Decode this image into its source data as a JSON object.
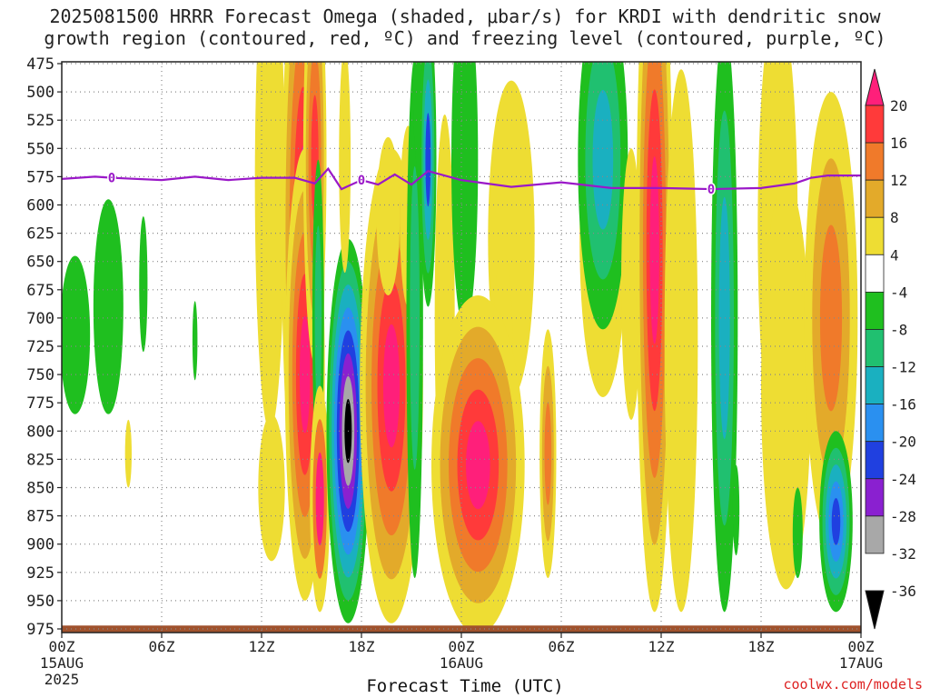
{
  "title_line1": "2025081500 HRRR Forecast Omega (shaded, μbar/s) for KRDI with dendritic snow",
  "title_line2": "growth region (contoured, red, ºC) and freezing level (contoured, purple, ºC)",
  "credit": "coolwx.com/models",
  "chart_data": {
    "type": "heatmap",
    "xlabel": "Forecast Time (UTC)",
    "ylabel": "",
    "x_tick_labels": [
      "00Z",
      "06Z",
      "12Z",
      "18Z",
      "00Z",
      "06Z",
      "12Z",
      "18Z",
      "00Z"
    ],
    "x_tick_hours": [
      0,
      6,
      12,
      18,
      24,
      30,
      36,
      42,
      48
    ],
    "x_date_labels": [
      {
        "hour": 0,
        "lines": [
          "15AUG",
          "2025"
        ]
      },
      {
        "hour": 24,
        "lines": [
          "16AUG"
        ]
      },
      {
        "hour": 48,
        "lines": [
          "17AUG"
        ]
      }
    ],
    "xlim": [
      0,
      48
    ],
    "y_tick_labels": [
      "475",
      "500",
      "525",
      "550",
      "575",
      "600",
      "625",
      "650",
      "675",
      "700",
      "725",
      "750",
      "775",
      "800",
      "825",
      "850",
      "875",
      "900",
      "925",
      "950",
      "975"
    ],
    "ylim": [
      475,
      980
    ],
    "colorbar": {
      "labels": [
        "20",
        "16",
        "12",
        "8",
        "4",
        "-4",
        "-8",
        "-12",
        "-16",
        "-20",
        "-24",
        "-28",
        "-32",
        "-36"
      ],
      "colors": [
        "#ff1f7a",
        "#ff3a3a",
        "#f07a2a",
        "#e3aa2a",
        "#eedd33",
        "#ffffff",
        "#1fbf1f",
        "#20c070",
        "#1ab0c0",
        "#2a90f0",
        "#2040e0",
        "#8a20d0",
        "#a8a8a8",
        "#000000"
      ]
    },
    "freezing_level": {
      "label": "0",
      "color": "#9a18c8",
      "x": [
        0,
        2,
        3,
        6,
        8,
        10,
        12,
        14,
        15.2,
        16,
        16.8,
        18,
        19,
        20,
        21,
        22,
        24,
        27,
        30,
        33,
        36,
        39,
        42,
        44,
        45,
        46,
        48
      ],
      "y": [
        577,
        575,
        576,
        578,
        575,
        578,
        576,
        576,
        581,
        568,
        586,
        578,
        582,
        573,
        582,
        570,
        578,
        584,
        580,
        585,
        585,
        586,
        585,
        581,
        576,
        574,
        574
      ]
    },
    "freezing_level_label_hours": [
      3,
      18,
      39
    ],
    "ground_color": "#a0522d"
  }
}
